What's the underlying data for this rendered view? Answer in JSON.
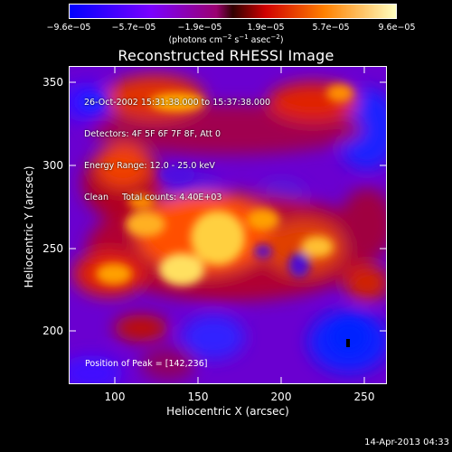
{
  "colorbar": {
    "ticks": [
      "−9.6e−05",
      "−5.7e−05",
      "−1.9e−05",
      "1.9e−05",
      "5.7e−05",
      "9.6e−05"
    ],
    "units_main": "(photons cm",
    "units_sup1": "−2",
    "units_mid": " s",
    "units_sup2": "−1",
    "units_end": " asec",
    "units_sup3": "−2",
    "units_close": ")"
  },
  "title": "Reconstructed RHESSI Image",
  "info": {
    "line1": "26-Oct-2002 15:31:38.000 to 15:37:38.000",
    "line2": "Detectors: 4F 5F 6F 7F 8F, Att 0",
    "line3": "Energy Range: 12.0 - 25.0 keV",
    "line4": "Clean     Total counts: 4.40E+03"
  },
  "peak_text": "Position of Peak = [142,236]",
  "axes": {
    "xlabel": "Heliocentric X (arcsec)",
    "ylabel": "Heliocentric Y (arcsec)",
    "xticks": [
      "100",
      "150",
      "200",
      "250"
    ],
    "yticks": [
      "350",
      "300",
      "250",
      "200"
    ]
  },
  "timestamp": "14-Apr-2013 04:33",
  "colors": {
    "background": "#000000",
    "text": "#ffffff",
    "colormap": [
      "#0000ff",
      "#7a00ff",
      "#c000a0",
      "#ff2000",
      "#ffa000",
      "#ffff90"
    ]
  }
}
